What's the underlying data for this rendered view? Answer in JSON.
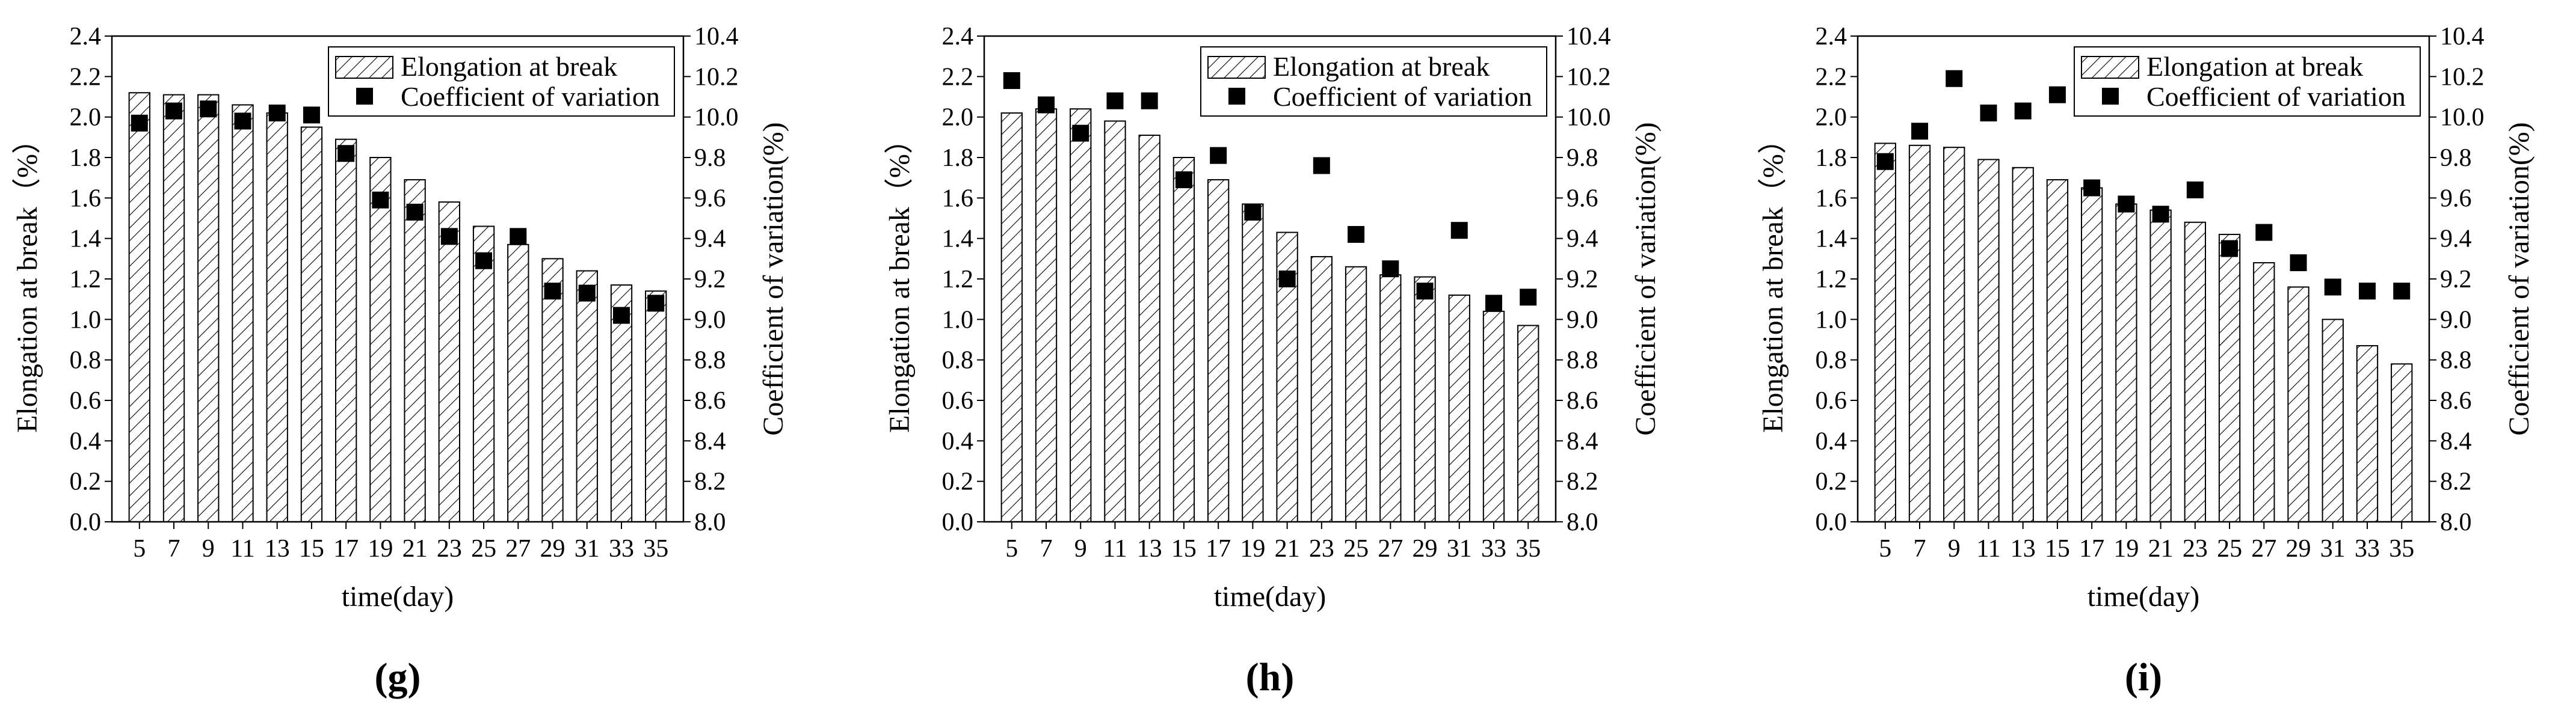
{
  "chart_data": [
    {
      "type": "bar",
      "panel_label": "(g)",
      "x": [
        5,
        7,
        9,
        11,
        13,
        15,
        17,
        19,
        21,
        23,
        25,
        27,
        29,
        31,
        33,
        35
      ],
      "xlabel": "time(day)",
      "ylabel": "Elongation at break（%）",
      "y2label": "Coefficient of variation(%)",
      "ylim": [
        0,
        2.4
      ],
      "y2lim": [
        8.0,
        10.4
      ],
      "yticks": [
        "0.0",
        "0.2",
        "0.4",
        "0.6",
        "0.8",
        "1.0",
        "1.2",
        "1.4",
        "1.6",
        "1.8",
        "2.0",
        "2.2",
        "2.4"
      ],
      "y2ticks": [
        "8.0",
        "8.2",
        "8.4",
        "8.6",
        "8.8",
        "9.0",
        "9.2",
        "9.4",
        "9.6",
        "9.8",
        "10.0",
        "10.2",
        "10.4"
      ],
      "legend_position": "top-right",
      "series": [
        {
          "name": "Elongation at break",
          "type": "bar",
          "pattern": "hatched",
          "axis": "left",
          "values": [
            2.12,
            2.11,
            2.11,
            2.06,
            2.02,
            1.95,
            1.89,
            1.8,
            1.69,
            1.58,
            1.46,
            1.37,
            1.3,
            1.24,
            1.17,
            1.14
          ]
        },
        {
          "name": "Coefficient of variation",
          "type": "scatter",
          "marker": "square",
          "axis": "right",
          "values": [
            9.97,
            10.03,
            10.04,
            9.98,
            10.02,
            10.01,
            9.82,
            9.59,
            9.53,
            9.41,
            9.29,
            9.41,
            9.14,
            9.13,
            9.02,
            9.08
          ]
        }
      ]
    },
    {
      "type": "bar",
      "panel_label": "(h)",
      "x": [
        5,
        7,
        9,
        11,
        13,
        15,
        17,
        19,
        21,
        23,
        25,
        27,
        29,
        31,
        33,
        35
      ],
      "xlabel": "time(day)",
      "ylabel": "Elongation at break（%）",
      "y2label": "Coefficient of variation(%)",
      "ylim": [
        0,
        2.4
      ],
      "y2lim": [
        8.0,
        10.4
      ],
      "yticks": [
        "0.0",
        "0.2",
        "0.4",
        "0.6",
        "0.8",
        "1.0",
        "1.2",
        "1.4",
        "1.6",
        "1.8",
        "2.0",
        "2.2",
        "2.4"
      ],
      "y2ticks": [
        "8.0",
        "8.2",
        "8.4",
        "8.6",
        "8.8",
        "9.0",
        "9.2",
        "9.4",
        "9.6",
        "9.8",
        "10.0",
        "10.2",
        "10.4"
      ],
      "legend_position": "top-right",
      "series": [
        {
          "name": "Elongation at break",
          "type": "bar",
          "pattern": "hatched",
          "axis": "left",
          "values": [
            2.02,
            2.04,
            2.04,
            1.98,
            1.91,
            1.8,
            1.69,
            1.57,
            1.43,
            1.31,
            1.26,
            1.22,
            1.21,
            1.12,
            1.04,
            0.97
          ]
        },
        {
          "name": "Coefficient of variation",
          "type": "scatter",
          "marker": "square",
          "axis": "right",
          "values": [
            10.18,
            10.06,
            9.92,
            10.08,
            10.08,
            9.69,
            9.81,
            9.53,
            9.2,
            9.76,
            9.42,
            9.25,
            9.14,
            9.44,
            9.08,
            9.11
          ]
        }
      ]
    },
    {
      "type": "bar",
      "panel_label": "(i)",
      "x": [
        5,
        7,
        9,
        11,
        13,
        15,
        17,
        19,
        21,
        23,
        25,
        27,
        29,
        31,
        33,
        35
      ],
      "xlabel": "time(day)",
      "ylabel": "Elongation at break（%）",
      "y2label": "Coefficient of variation(%)",
      "ylim": [
        0,
        2.4
      ],
      "y2lim": [
        8.0,
        10.4
      ],
      "yticks": [
        "0.0",
        "0.2",
        "0.4",
        "0.6",
        "0.8",
        "1.0",
        "1.2",
        "1.4",
        "1.6",
        "1.8",
        "2.0",
        "2.2",
        "2.4"
      ],
      "y2ticks": [
        "8.0",
        "8.2",
        "8.4",
        "8.6",
        "8.8",
        "9.0",
        "9.2",
        "9.4",
        "9.6",
        "9.8",
        "10.0",
        "10.2",
        "10.4"
      ],
      "legend_position": "top-right",
      "series": [
        {
          "name": "Elongation at break",
          "type": "bar",
          "pattern": "hatched",
          "axis": "left",
          "values": [
            1.87,
            1.86,
            1.85,
            1.79,
            1.75,
            1.69,
            1.65,
            1.57,
            1.54,
            1.48,
            1.42,
            1.28,
            1.16,
            1.0,
            0.87,
            0.78
          ]
        },
        {
          "name": "Coefficient of variation",
          "type": "scatter",
          "marker": "square",
          "axis": "right",
          "values": [
            9.78,
            9.93,
            10.19,
            10.02,
            10.03,
            10.11,
            9.65,
            9.57,
            9.52,
            9.64,
            9.35,
            9.43,
            9.28,
            9.16,
            9.14,
            9.14
          ]
        }
      ]
    }
  ]
}
